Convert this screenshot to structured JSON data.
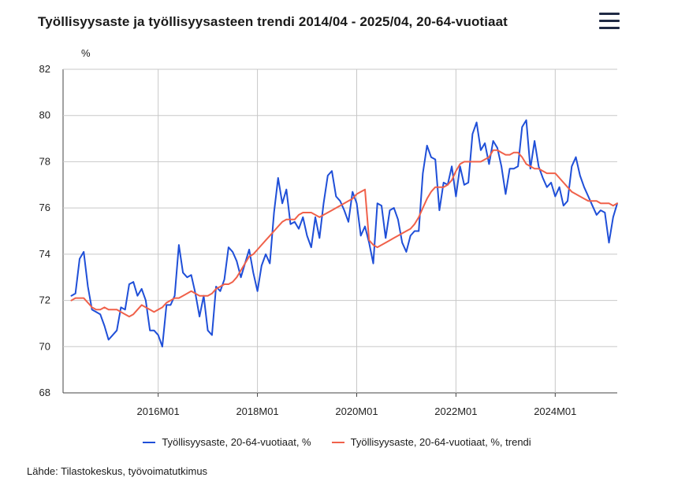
{
  "header": {
    "title": "Työllisyysaste ja työllisyysasteen trendi 2014/04 - 2025/04, 20-64-vuotiaat",
    "menu_icon": "hamburger-menu-icon"
  },
  "source": "Lähde: Tilastokeskus, työvoimatutkimus",
  "chart_data": {
    "type": "line",
    "ylabel": "%",
    "ylim": [
      68,
      82
    ],
    "yticks": [
      68,
      70,
      72,
      74,
      76,
      78,
      80,
      82
    ],
    "x_start": "2014M04",
    "x_end": "2025M04",
    "xticks": [
      "2016M01",
      "2018M01",
      "2020M01",
      "2022M01",
      "2024M01"
    ],
    "grid": true,
    "legend_position": "bottom",
    "series": [
      {
        "name": "Työllisyysaste, 20-64-vuotiaat, %",
        "color": "#1f4fd8",
        "values": [
          72.2,
          72.3,
          73.8,
          74.1,
          72.6,
          71.6,
          71.5,
          71.4,
          70.9,
          70.3,
          70.5,
          70.7,
          71.7,
          71.6,
          72.7,
          72.8,
          72.2,
          72.5,
          72.0,
          70.7,
          70.7,
          70.5,
          70.0,
          71.8,
          71.8,
          72.2,
          74.4,
          73.2,
          73.0,
          73.1,
          72.3,
          71.3,
          72.2,
          70.7,
          70.5,
          72.6,
          72.4,
          72.9,
          74.3,
          74.1,
          73.7,
          73.0,
          73.6,
          74.2,
          73.2,
          72.4,
          73.5,
          74.0,
          73.6,
          75.8,
          77.3,
          76.2,
          76.8,
          75.3,
          75.4,
          75.1,
          75.6,
          74.8,
          74.3,
          75.6,
          74.7,
          76.2,
          77.4,
          77.6,
          76.5,
          76.3,
          75.9,
          75.4,
          76.7,
          76.2,
          74.8,
          75.2,
          74.5,
          73.6,
          76.2,
          76.1,
          74.7,
          75.9,
          76.0,
          75.5,
          74.5,
          74.1,
          74.8,
          75.0,
          75.0,
          77.5,
          78.7,
          78.2,
          78.1,
          75.9,
          77.1,
          77.0,
          77.8,
          76.5,
          77.8,
          77.0,
          77.1,
          79.2,
          79.7,
          78.5,
          78.8,
          77.9,
          78.9,
          78.6,
          77.8,
          76.6,
          77.7,
          77.7,
          77.8,
          79.5,
          79.8,
          77.7,
          78.9,
          77.8,
          77.3,
          76.9,
          77.1,
          76.5,
          76.9,
          76.1,
          76.3,
          77.8,
          78.2,
          77.4,
          76.9,
          76.5,
          76.1,
          75.7,
          75.9,
          75.8,
          74.5,
          75.6,
          76.2
        ]
      },
      {
        "name": "Työllisyysaste, 20-64-vuotiaat, %, trendi",
        "color": "#f0614a",
        "values": [
          72.0,
          72.1,
          72.1,
          72.1,
          71.9,
          71.7,
          71.6,
          71.6,
          71.7,
          71.6,
          71.6,
          71.6,
          71.5,
          71.4,
          71.3,
          71.4,
          71.6,
          71.8,
          71.7,
          71.6,
          71.5,
          71.6,
          71.7,
          71.9,
          72.0,
          72.1,
          72.1,
          72.2,
          72.3,
          72.4,
          72.3,
          72.2,
          72.2,
          72.2,
          72.3,
          72.5,
          72.6,
          72.7,
          72.7,
          72.8,
          73.0,
          73.3,
          73.6,
          73.9,
          74.0,
          74.2,
          74.4,
          74.6,
          74.8,
          75.0,
          75.2,
          75.4,
          75.5,
          75.5,
          75.5,
          75.7,
          75.8,
          75.8,
          75.8,
          75.7,
          75.6,
          75.7,
          75.8,
          75.9,
          76.0,
          76.1,
          76.2,
          76.3,
          76.4,
          76.6,
          76.7,
          76.8,
          74.6,
          74.4,
          74.3,
          74.4,
          74.5,
          74.6,
          74.7,
          74.8,
          74.9,
          75.0,
          75.1,
          75.3,
          75.6,
          76.0,
          76.4,
          76.7,
          76.9,
          76.9,
          76.9,
          77.0,
          77.2,
          77.6,
          77.9,
          78.0,
          78.0,
          78.0,
          78.0,
          78.0,
          78.1,
          78.2,
          78.5,
          78.5,
          78.4,
          78.3,
          78.3,
          78.4,
          78.4,
          78.2,
          77.9,
          77.8,
          77.7,
          77.7,
          77.6,
          77.5,
          77.5,
          77.5,
          77.3,
          77.1,
          76.9,
          76.7,
          76.6,
          76.5,
          76.4,
          76.3,
          76.3,
          76.3,
          76.2,
          76.2,
          76.2,
          76.1,
          76.2
        ]
      }
    ]
  }
}
